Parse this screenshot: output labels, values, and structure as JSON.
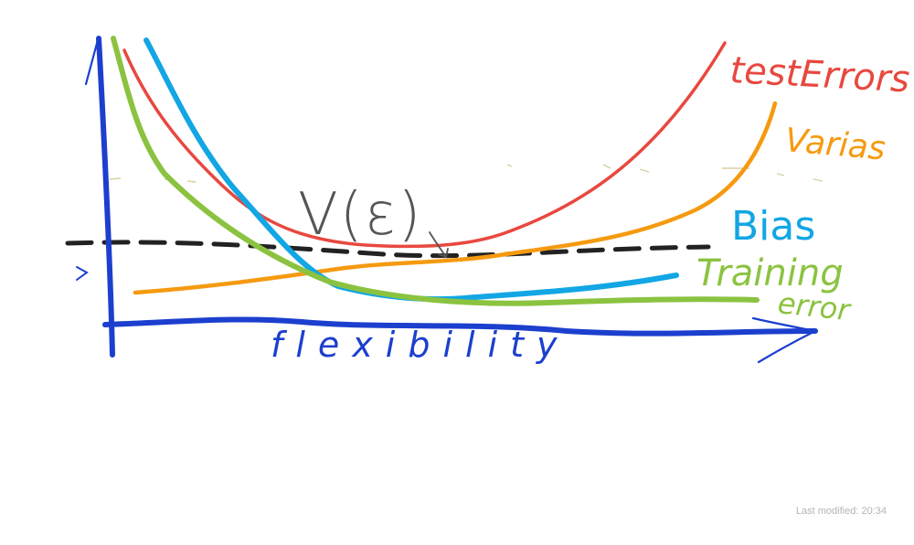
{
  "labels": {
    "test_error": "testErrors",
    "variance": "Varias",
    "bias": "Bias",
    "training_line1": "Training",
    "training_line2": "error",
    "x_axis": "flexibility",
    "v_epsilon": "V(ε)"
  },
  "status": {
    "last_modified": "Last modified: 20:34"
  },
  "colors": {
    "axis": "#1c3fce",
    "test_error": "#e8483f",
    "variance": "#f59a10",
    "bias": "#12a6e4",
    "training_error": "#8bc340",
    "dashed": "#222222",
    "v_epsilon": "#555555",
    "status": "#b4b4b4"
  },
  "icons": {
    "arrow": "arrow-icon"
  }
}
